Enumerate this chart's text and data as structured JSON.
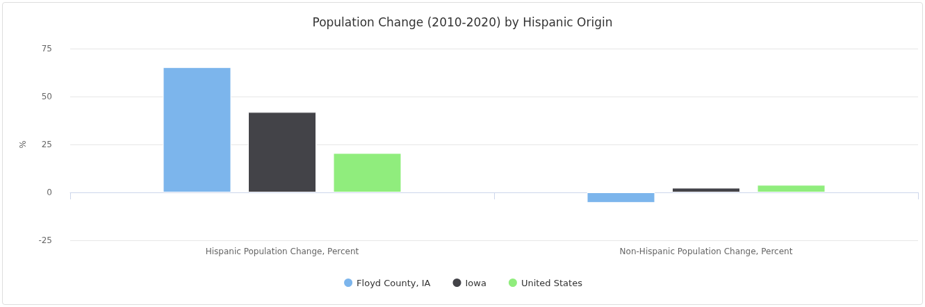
{
  "chart_data": {
    "type": "bar",
    "title": "Population Change (2010-2020) by Hispanic Origin",
    "ylabel": "%",
    "categories": [
      "Hispanic Population Change, Percent",
      "Non-Hispanic Population Change, Percent"
    ],
    "series": [
      {
        "name": "Floyd County, IA",
        "color": "#7cb5ec",
        "values": [
          65.3,
          -5.4
        ]
      },
      {
        "name": "Iowa",
        "color": "#434348",
        "values": [
          41.9,
          2.4
        ]
      },
      {
        "name": "United States",
        "color": "#90ed7d",
        "values": [
          20.5,
          3.9
        ]
      }
    ],
    "ylim": [
      -25,
      75
    ],
    "yticks": [
      -25,
      0,
      25,
      50,
      75
    ],
    "grid": "y",
    "legend": "bottom"
  }
}
